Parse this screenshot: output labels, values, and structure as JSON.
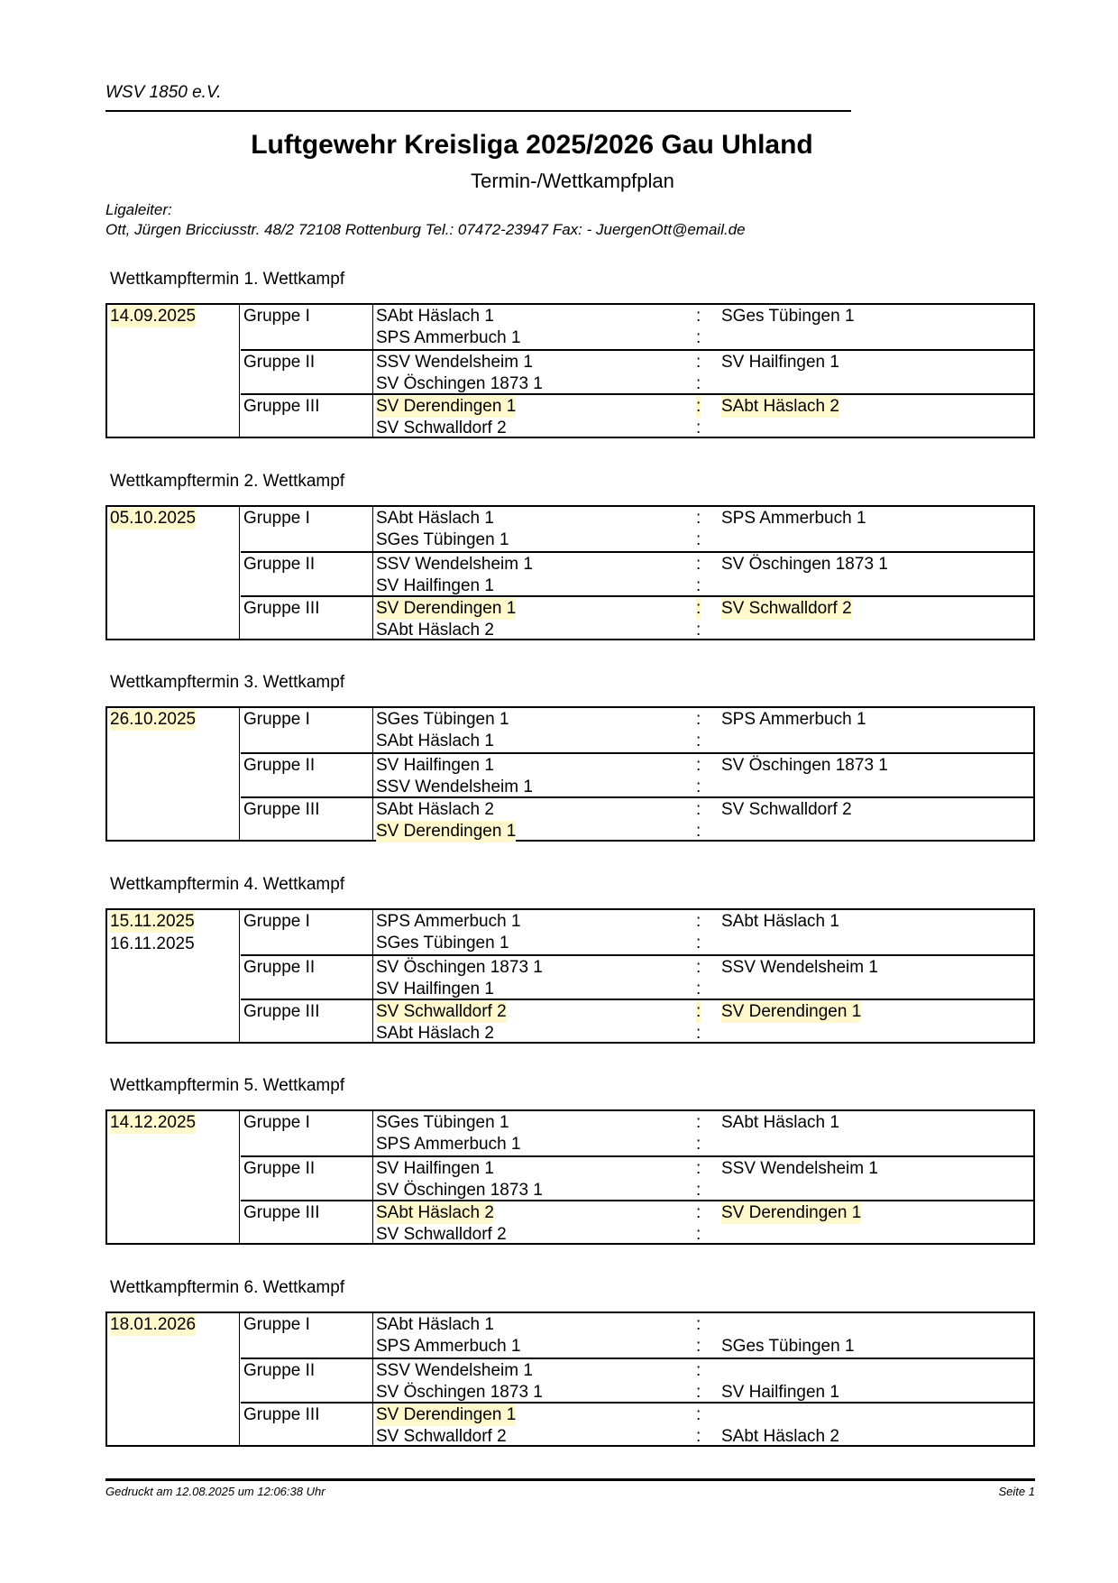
{
  "header": {
    "club": "WSV 1850 e.V.",
    "title": "Luftgewehr Kreisliga 2025/2026 Gau Uhland",
    "subtitle": "Termin-/Wettkampfplan",
    "leader_label": "Ligaleiter:",
    "leader_contact": "Ott, Jürgen Bricciusstr. 48/2 72108 Rottenburg Tel.: 07472-23947 Fax: - JuergenOtt@email.de"
  },
  "highlight_color": "#fff8cc",
  "sections": [
    {
      "label": "Wettkampftermin 1. Wettkampf",
      "dates": [
        {
          "text": "14.09.2025",
          "hl": true
        }
      ],
      "groups": [
        {
          "name": "Gruppe I",
          "rows": [
            {
              "left": "SAbt Häslach 1",
              "sep": ":",
              "right": "SGes Tübingen 1"
            },
            {
              "left": "SPS Ammerbuch 1",
              "sep": ":",
              "right": ""
            }
          ]
        },
        {
          "name": "Gruppe II",
          "rows": [
            {
              "left": "SSV Wendelsheim 1",
              "sep": ":",
              "right": "SV Hailfingen 1"
            },
            {
              "left": "SV Öschingen 1873 1",
              "sep": ":",
              "right": ""
            }
          ]
        },
        {
          "name": "Gruppe III",
          "rows": [
            {
              "left": "SV Derendingen 1",
              "sep": ":",
              "right": "SAbt Häslach 2",
              "hl_left": true,
              "hl_sep": true,
              "hl_right": true
            },
            {
              "left": "SV Schwalldorf 2",
              "sep": ":",
              "right": ""
            }
          ]
        }
      ]
    },
    {
      "label": "Wettkampftermin 2. Wettkampf",
      "dates": [
        {
          "text": "05.10.2025",
          "hl": true
        }
      ],
      "groups": [
        {
          "name": "Gruppe I",
          "rows": [
            {
              "left": "SAbt Häslach 1",
              "sep": ":",
              "right": "SPS Ammerbuch 1"
            },
            {
              "left": "SGes Tübingen 1",
              "sep": ":",
              "right": ""
            }
          ]
        },
        {
          "name": "Gruppe II",
          "rows": [
            {
              "left": "SSV Wendelsheim 1",
              "sep": ":",
              "right": "SV Öschingen 1873 1"
            },
            {
              "left": "SV Hailfingen 1",
              "sep": ":",
              "right": ""
            }
          ]
        },
        {
          "name": "Gruppe III",
          "rows": [
            {
              "left": "SV Derendingen 1",
              "sep": ":",
              "right": "SV Schwalldorf 2",
              "hl_left": true,
              "hl_sep": true,
              "hl_right": true
            },
            {
              "left": "SAbt Häslach 2",
              "sep": ":",
              "right": ""
            }
          ]
        }
      ]
    },
    {
      "label": "Wettkampftermin 3. Wettkampf",
      "dates": [
        {
          "text": "26.10.2025",
          "hl": true
        }
      ],
      "groups": [
        {
          "name": "Gruppe I",
          "rows": [
            {
              "left": "SGes Tübingen 1",
              "sep": ":",
              "right": "SPS Ammerbuch 1"
            },
            {
              "left": "SAbt Häslach 1",
              "sep": ":",
              "right": ""
            }
          ]
        },
        {
          "name": "Gruppe II",
          "rows": [
            {
              "left": "SV Hailfingen 1",
              "sep": ":",
              "right": "SV Öschingen 1873 1"
            },
            {
              "left": "SSV Wendelsheim 1",
              "sep": ":",
              "right": ""
            }
          ]
        },
        {
          "name": "Gruppe III",
          "rows": [
            {
              "left": "SAbt Häslach 2",
              "sep": ":",
              "right": "SV Schwalldorf 2"
            },
            {
              "left": "SV Derendingen 1",
              "sep": ":",
              "right": "",
              "hl_left": true
            }
          ]
        }
      ]
    },
    {
      "label": "Wettkampftermin 4. Wettkampf",
      "dates": [
        {
          "text": "15.11.2025",
          "hl": true
        },
        {
          "text": "16.11.2025",
          "hl": false
        }
      ],
      "groups": [
        {
          "name": "Gruppe I",
          "rows": [
            {
              "left": "SPS Ammerbuch 1",
              "sep": ":",
              "right": "SAbt Häslach 1"
            },
            {
              "left": "SGes Tübingen 1",
              "sep": ":",
              "right": ""
            }
          ]
        },
        {
          "name": "Gruppe II",
          "rows": [
            {
              "left": "SV Öschingen 1873 1",
              "sep": ":",
              "right": "SSV Wendelsheim 1"
            },
            {
              "left": "SV Hailfingen 1",
              "sep": ":",
              "right": ""
            }
          ]
        },
        {
          "name": "Gruppe III",
          "rows": [
            {
              "left": "SV Schwalldorf 2",
              "sep": ":",
              "right": "SV Derendingen 1",
              "hl_left": true,
              "hl_sep": true,
              "hl_right": true
            },
            {
              "left": "SAbt Häslach 2",
              "sep": ":",
              "right": ""
            }
          ]
        }
      ]
    },
    {
      "label": "Wettkampftermin 5. Wettkampf",
      "dates": [
        {
          "text": "14.12.2025",
          "hl": true
        }
      ],
      "groups": [
        {
          "name": "Gruppe I",
          "rows": [
            {
              "left": "SGes Tübingen 1",
              "sep": ":",
              "right": "SAbt Häslach 1"
            },
            {
              "left": "SPS Ammerbuch 1",
              "sep": ":",
              "right": ""
            }
          ]
        },
        {
          "name": "Gruppe II",
          "rows": [
            {
              "left": "SV Hailfingen 1",
              "sep": ":",
              "right": "SSV Wendelsheim 1"
            },
            {
              "left": "SV Öschingen 1873 1",
              "sep": ":",
              "right": ""
            }
          ]
        },
        {
          "name": "Gruppe III",
          "rows": [
            {
              "left": "SAbt Häslach 2",
              "sep": ":",
              "right": "SV Derendingen 1",
              "hl_left": true,
              "hl_right": true
            },
            {
              "left": "SV Schwalldorf 2",
              "sep": ":",
              "right": ""
            }
          ]
        }
      ]
    },
    {
      "label": "Wettkampftermin 6. Wettkampf",
      "dates": [
        {
          "text": "18.01.2026",
          "hl": true
        }
      ],
      "groups": [
        {
          "name": "Gruppe I",
          "rows": [
            {
              "left": "SAbt Häslach 1",
              "sep": ":",
              "right": ""
            },
            {
              "left": "SPS Ammerbuch 1",
              "sep": ":",
              "right": "SGes Tübingen 1"
            }
          ]
        },
        {
          "name": "Gruppe II",
          "rows": [
            {
              "left": "SSV Wendelsheim 1",
              "sep": ":",
              "right": ""
            },
            {
              "left": "SV Öschingen 1873 1",
              "sep": ":",
              "right": "SV Hailfingen 1"
            }
          ]
        },
        {
          "name": "Gruppe III",
          "rows": [
            {
              "left": "SV Derendingen 1",
              "sep": ":",
              "right": "",
              "hl_left": true
            },
            {
              "left": "SV Schwalldorf 2",
              "sep": ":",
              "right": "SAbt Häslach 2"
            }
          ]
        }
      ]
    }
  ],
  "footer": {
    "printed": "Gedruckt am 12.08.2025 um 12:06:38 Uhr",
    "page": "Seite 1"
  }
}
